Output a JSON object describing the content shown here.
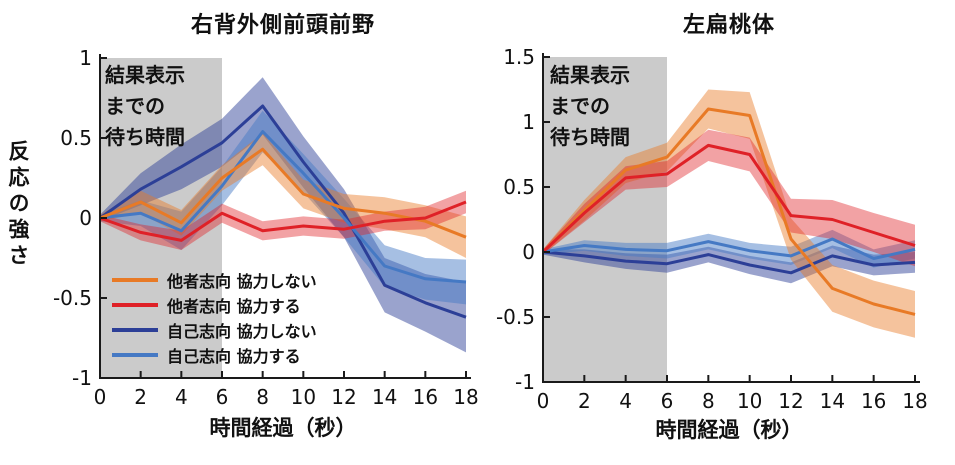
{
  "figure": {
    "background": "#ffffff",
    "axis_color": "#1a1a1a",
    "shaded_region_color": "#cbcbcb"
  },
  "chart_data": [
    {
      "type": "line",
      "title": "右背外側前頭前野",
      "xlabel": "時間経過（秒）",
      "ylabel": "反応の強さ",
      "xlim": [
        0,
        18
      ],
      "ylim": [
        -1,
        1
      ],
      "xticks": [
        0,
        2,
        4,
        6,
        8,
        10,
        12,
        14,
        16,
        18
      ],
      "yticks": [
        -1,
        -0.5,
        0,
        0.5,
        1
      ],
      "grid": false,
      "legend_position": "inside-lower-left",
      "shaded_region": {
        "x0": 0,
        "x1": 6,
        "label": "結果表示\nまでの\n待ち時間"
      },
      "x": [
        0,
        2,
        4,
        6,
        8,
        10,
        12,
        14,
        16,
        18
      ],
      "draw_order": [
        2,
        3,
        0,
        1
      ],
      "series": [
        {
          "id": "other-oriented-no-cooperate",
          "name": "他者志向 協力しない",
          "color": "#e87a26",
          "fill_opacity": 0.45,
          "values": [
            0,
            0.1,
            -0.03,
            0.25,
            0.43,
            0.15,
            0.06,
            0.03,
            -0.02,
            -0.12
          ],
          "band": [
            0.02,
            0.07,
            0.08,
            0.08,
            0.1,
            0.09,
            0.09,
            0.1,
            0.1,
            0.13
          ]
        },
        {
          "id": "other-oriented-cooperate",
          "name": "他者志向 協力する",
          "color": "#df2127",
          "fill_opacity": 0.42,
          "values": [
            0,
            -0.09,
            -0.14,
            0.03,
            -0.08,
            -0.05,
            -0.07,
            -0.02,
            0.0,
            0.1
          ],
          "band": [
            0.02,
            0.05,
            0.06,
            0.06,
            0.06,
            0.06,
            0.06,
            0.06,
            0.07,
            0.07
          ]
        },
        {
          "id": "self-oriented-no-cooperate",
          "name": "自己志向 協力しない",
          "color": "#2c3f97",
          "fill_opacity": 0.48,
          "values": [
            0,
            0.18,
            0.32,
            0.47,
            0.7,
            0.35,
            0.03,
            -0.42,
            -0.53,
            -0.62
          ],
          "band": [
            0.02,
            0.1,
            0.14,
            0.15,
            0.18,
            0.16,
            0.15,
            0.17,
            0.18,
            0.22
          ]
        },
        {
          "id": "self-oriented-cooperate",
          "name": "自己志向 協力する",
          "color": "#4579c4",
          "fill_opacity": 0.48,
          "values": [
            0,
            0.03,
            -0.08,
            0.2,
            0.54,
            0.28,
            0.0,
            -0.3,
            -0.38,
            -0.4
          ],
          "band": [
            0.02,
            0.08,
            0.12,
            0.12,
            0.13,
            0.12,
            0.12,
            0.13,
            0.13,
            0.14
          ]
        }
      ]
    },
    {
      "type": "line",
      "title": "左扁桃体",
      "xlabel": "時間経過（秒）",
      "ylabel": "",
      "xlim": [
        0,
        18
      ],
      "ylim": [
        -1,
        1.5
      ],
      "xticks": [
        0,
        2,
        4,
        6,
        8,
        10,
        12,
        14,
        16,
        18
      ],
      "yticks": [
        -1,
        -0.5,
        0,
        0.5,
        1,
        1.5
      ],
      "grid": false,
      "legend_position": "none",
      "shaded_region": {
        "x0": 0,
        "x1": 6,
        "label": "結果表示\nまでの\n待ち時間"
      },
      "x": [
        0,
        2,
        4,
        6,
        8,
        10,
        12,
        14,
        16,
        18
      ],
      "draw_order": [
        2,
        3,
        0,
        1
      ],
      "series": [
        {
          "id": "other-oriented-no-cooperate",
          "name": "他者志向 協力しない",
          "color": "#e87a26",
          "fill_opacity": 0.45,
          "values": [
            0,
            0.32,
            0.63,
            0.73,
            1.1,
            1.05,
            0.1,
            -0.28,
            -0.4,
            -0.48
          ],
          "band": [
            0.02,
            0.08,
            0.1,
            0.11,
            0.15,
            0.18,
            0.16,
            0.18,
            0.18,
            0.18
          ]
        },
        {
          "id": "other-oriented-cooperate",
          "name": "他者志向 協力する",
          "color": "#df2127",
          "fill_opacity": 0.42,
          "values": [
            0,
            0.3,
            0.57,
            0.6,
            0.82,
            0.75,
            0.28,
            0.25,
            0.15,
            0.05
          ],
          "band": [
            0.02,
            0.07,
            0.09,
            0.1,
            0.12,
            0.13,
            0.13,
            0.15,
            0.15,
            0.16
          ]
        },
        {
          "id": "self-oriented-no-cooperate",
          "name": "自己志向 協力しない",
          "color": "#2c3f97",
          "fill_opacity": 0.48,
          "values": [
            0,
            -0.03,
            -0.07,
            -0.09,
            -0.02,
            -0.1,
            -0.16,
            -0.03,
            -0.1,
            -0.08
          ],
          "band": [
            0.02,
            0.05,
            0.06,
            0.07,
            0.06,
            0.07,
            0.08,
            0.08,
            0.08,
            0.08
          ]
        },
        {
          "id": "self-oriented-cooperate",
          "name": "自己志向 協力する",
          "color": "#4579c4",
          "fill_opacity": 0.48,
          "values": [
            0,
            0.05,
            0.02,
            0.01,
            0.08,
            0.01,
            -0.03,
            0.1,
            -0.05,
            0.02
          ],
          "band": [
            0.02,
            0.04,
            0.05,
            0.06,
            0.06,
            0.06,
            0.07,
            0.07,
            0.07,
            0.07
          ]
        }
      ]
    }
  ]
}
